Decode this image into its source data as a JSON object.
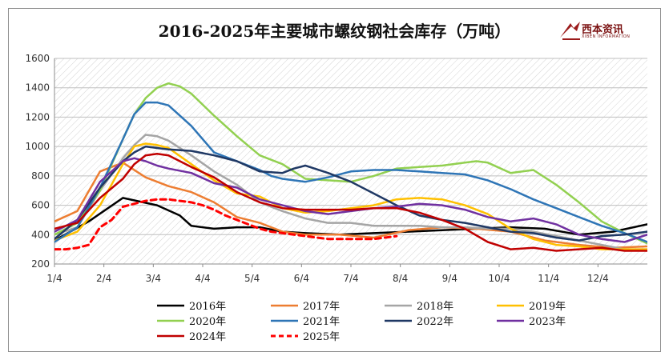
{
  "chart_data": {
    "type": "line",
    "title": "2016-2025年主要城市螺纹钢社会库存（万吨）",
    "logo": "西本资讯",
    "logo_sub": "XIBEN INFORMATION",
    "ylim": [
      200,
      1600
    ],
    "yticks": [
      200,
      400,
      600,
      800,
      1000,
      1200,
      1400,
      1600
    ],
    "xticks": [
      "1/4",
      "2/4",
      "3/4",
      "4/4",
      "5/4",
      "6/4",
      "7/4",
      "8/4",
      "9/4",
      "10/4",
      "11/4",
      "12/4"
    ],
    "xrange": [
      0,
      52
    ],
    "grid": true,
    "legend_position": "bottom",
    "series": [
      {
        "name": "2016年",
        "color": "#000000",
        "dash": false,
        "x": [
          0,
          3,
          6,
          9,
          11,
          12,
          14,
          16,
          18,
          20,
          22,
          25,
          28,
          31,
          34,
          37,
          40,
          43,
          46,
          49,
          52
        ],
        "y": [
          360,
          490,
          650,
          600,
          530,
          460,
          440,
          450,
          450,
          420,
          410,
          400,
          410,
          420,
          430,
          440,
          450,
          440,
          400,
          420,
          470
        ]
      },
      {
        "name": "2017年",
        "color": "#ED7D31",
        "dash": false,
        "x": [
          0,
          2,
          4,
          6,
          8,
          10,
          12,
          14,
          16,
          18,
          20,
          22,
          25,
          28,
          31,
          34,
          37,
          40,
          43,
          46,
          49,
          52
        ],
        "y": [
          490,
          560,
          830,
          890,
          790,
          730,
          690,
          620,
          520,
          480,
          420,
          400,
          400,
          380,
          430,
          450,
          440,
          420,
          360,
          330,
          310,
          320
        ]
      },
      {
        "name": "2018年",
        "color": "#A5A5A5",
        "dash": false,
        "x": [
          0,
          2,
          4,
          6,
          7,
          8,
          9,
          10,
          12,
          14,
          16,
          18,
          20,
          22,
          24,
          26,
          28,
          30,
          32,
          34,
          36,
          38,
          40,
          42,
          44,
          46,
          48,
          50,
          52
        ],
        "y": [
          400,
          450,
          700,
          920,
          1010,
          1080,
          1070,
          1040,
          940,
          830,
          740,
          620,
          560,
          510,
          480,
          480,
          460,
          460,
          460,
          450,
          450,
          440,
          440,
          420,
          390,
          360,
          330,
          300,
          300
        ]
      },
      {
        "name": "2019年",
        "color": "#FFC000",
        "dash": false,
        "x": [
          0,
          2,
          4,
          6,
          7,
          8,
          9,
          10,
          12,
          14,
          16,
          18,
          20,
          22,
          24,
          26,
          28,
          30,
          32,
          34,
          36,
          38,
          40,
          42,
          44,
          46,
          48,
          50,
          52
        ],
        "y": [
          360,
          420,
          600,
          880,
          1000,
          1020,
          1010,
          990,
          880,
          770,
          680,
          660,
          580,
          550,
          560,
          580,
          600,
          640,
          650,
          640,
          600,
          540,
          440,
          370,
          330,
          320,
          300,
          300,
          300
        ]
      },
      {
        "name": "2020年",
        "color": "#92D050",
        "dash": false,
        "x": [
          0,
          2,
          4,
          6,
          7,
          8,
          9,
          10,
          11,
          12,
          14,
          16,
          18,
          20,
          21,
          22,
          24,
          26,
          28,
          30,
          32,
          34,
          36,
          37,
          38,
          40,
          42,
          44,
          46,
          48,
          50,
          52
        ],
        "y": [
          400,
          480,
          700,
          1050,
          1220,
          1330,
          1400,
          1430,
          1410,
          1360,
          1210,
          1070,
          940,
          880,
          830,
          780,
          770,
          760,
          800,
          850,
          860,
          870,
          890,
          900,
          890,
          820,
          840,
          740,
          620,
          490,
          410,
          340
        ]
      },
      {
        "name": "2021年",
        "color": "#2E75B6",
        "dash": false,
        "x": [
          0,
          2,
          4,
          6,
          7,
          8,
          9,
          10,
          12,
          14,
          16,
          18,
          19,
          20,
          22,
          24,
          26,
          28,
          30,
          32,
          34,
          36,
          38,
          40,
          42,
          44,
          46,
          48,
          50,
          52
        ],
        "y": [
          350,
          450,
          720,
          1050,
          1220,
          1300,
          1300,
          1280,
          1140,
          960,
          900,
          840,
          800,
          780,
          760,
          790,
          830,
          840,
          840,
          830,
          820,
          810,
          770,
          710,
          640,
          580,
          520,
          460,
          410,
          350
        ]
      },
      {
        "name": "2022年",
        "color": "#1F3864",
        "dash": false,
        "x": [
          0,
          2,
          4,
          6,
          7,
          8,
          9,
          10,
          12,
          14,
          16,
          18,
          20,
          21,
          22,
          24,
          26,
          28,
          30,
          32,
          34,
          36,
          38,
          40,
          42,
          44,
          46,
          48,
          50,
          52
        ],
        "y": [
          370,
          500,
          720,
          900,
          960,
          1000,
          990,
          980,
          970,
          940,
          900,
          830,
          820,
          850,
          870,
          820,
          760,
          680,
          600,
          530,
          500,
          480,
          450,
          420,
          410,
          380,
          360,
          390,
          400,
          420
        ]
      },
      {
        "name": "2023年",
        "color": "#7030A0",
        "dash": false,
        "x": [
          0,
          2,
          4,
          6,
          7,
          8,
          9,
          10,
          12,
          14,
          16,
          18,
          20,
          22,
          24,
          26,
          28,
          30,
          32,
          34,
          36,
          38,
          40,
          42,
          44,
          46,
          48,
          50,
          52
        ],
        "y": [
          420,
          500,
          760,
          900,
          920,
          900,
          870,
          850,
          820,
          750,
          720,
          640,
          600,
          560,
          540,
          560,
          580,
          590,
          610,
          600,
          570,
          520,
          490,
          510,
          470,
          400,
          370,
          350,
          400
        ]
      },
      {
        "name": "2024年",
        "color": "#C00000",
        "dash": false,
        "x": [
          0,
          2,
          4,
          6,
          7,
          8,
          9,
          10,
          12,
          14,
          16,
          18,
          20,
          22,
          24,
          26,
          28,
          30,
          32,
          34,
          36,
          38,
          40,
          42,
          44,
          46,
          48,
          50,
          52
        ],
        "y": [
          440,
          480,
          650,
          780,
          880,
          940,
          950,
          940,
          860,
          790,
          690,
          620,
          580,
          570,
          570,
          570,
          580,
          580,
          550,
          500,
          440,
          350,
          300,
          310,
          290,
          300,
          310,
          290,
          290
        ]
      },
      {
        "name": "2025年",
        "color": "#FF0000",
        "dash": true,
        "x": [
          0,
          1,
          2,
          3,
          4,
          5,
          6,
          7,
          8,
          9,
          10,
          11,
          12,
          13,
          14,
          15,
          16,
          17,
          18,
          19,
          20,
          21,
          22,
          23,
          24,
          25,
          26,
          27,
          28,
          29,
          30
        ],
        "y": [
          300,
          300,
          310,
          330,
          450,
          500,
          590,
          610,
          630,
          640,
          640,
          630,
          620,
          600,
          570,
          530,
          500,
          470,
          440,
          420,
          410,
          400,
          390,
          380,
          370,
          370,
          370,
          370,
          370,
          380,
          390
        ]
      }
    ]
  }
}
